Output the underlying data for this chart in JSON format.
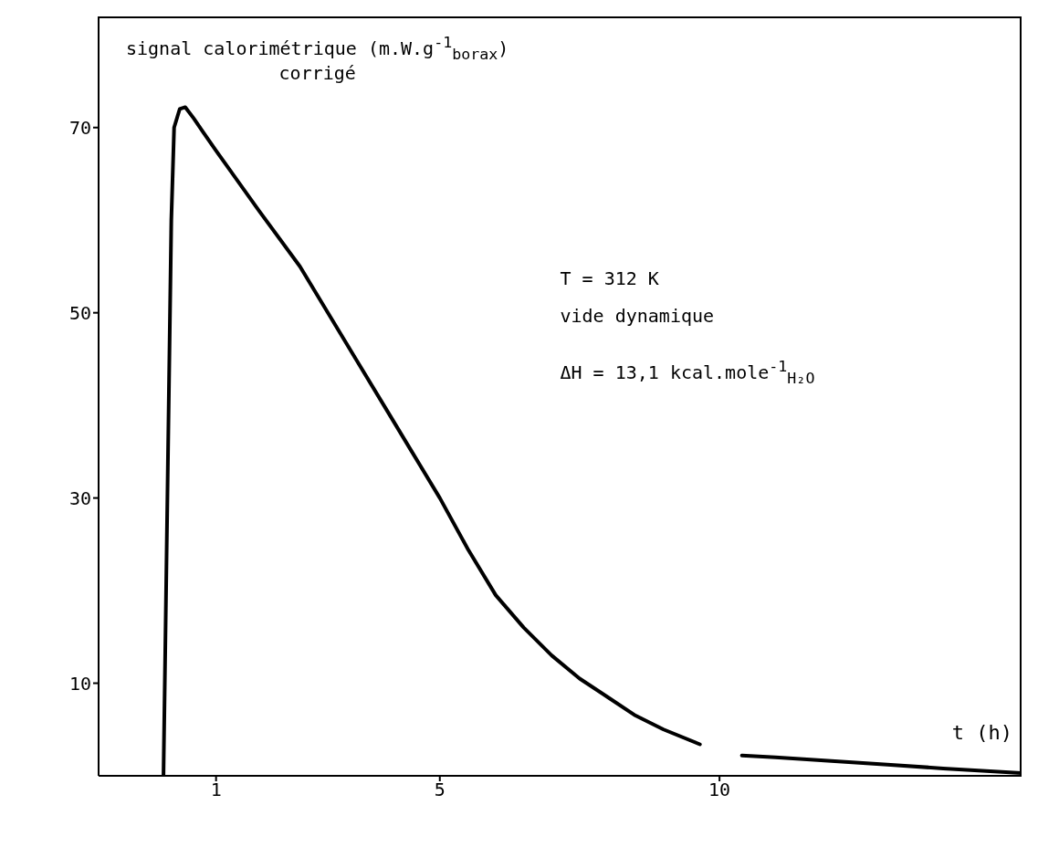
{
  "chart_data": {
    "type": "line",
    "xlabel": "t (h)",
    "ylabel": "signal calorimétrique (m.W.g$^{-1}$$_{borax}$)\ncorrigé",
    "annotations": [
      "T = 312 K",
      "vide dynamique",
      "ΔH = 13,1 kcal.mole$^{-1}$$_{H₂O}$"
    ],
    "x": [
      0.06,
      0.2,
      0.25,
      0.35,
      0.45,
      0.6,
      0.77,
      1,
      1.77,
      2.5,
      3,
      3.5,
      4,
      4.5,
      5,
      5.5,
      6,
      6.5,
      7,
      7.5,
      8,
      8.5,
      9,
      9.65,
      10,
      10.4,
      11,
      12,
      13,
      14,
      15.4
    ],
    "series": [
      {
        "color": "#000000",
        "values": [
          0,
          60,
          70,
          72,
          72.2,
          71,
          69.5,
          67.5,
          61,
          55,
          50,
          45,
          40,
          35,
          30,
          24.5,
          19.5,
          16,
          13,
          10.5,
          8.5,
          6.5,
          5,
          3.4,
          null,
          2.2,
          2,
          1.6,
          1.2,
          0.8,
          0.3
        ]
      }
    ],
    "xlim": [
      -1.1,
      15.4
    ],
    "ylim": [
      0,
      82
    ],
    "xticks": [
      1,
      5,
      10
    ],
    "yticks": [
      10,
      30,
      50,
      70
    ],
    "grid": false,
    "legend": false,
    "marker": "none",
    "line_style": "solid"
  }
}
